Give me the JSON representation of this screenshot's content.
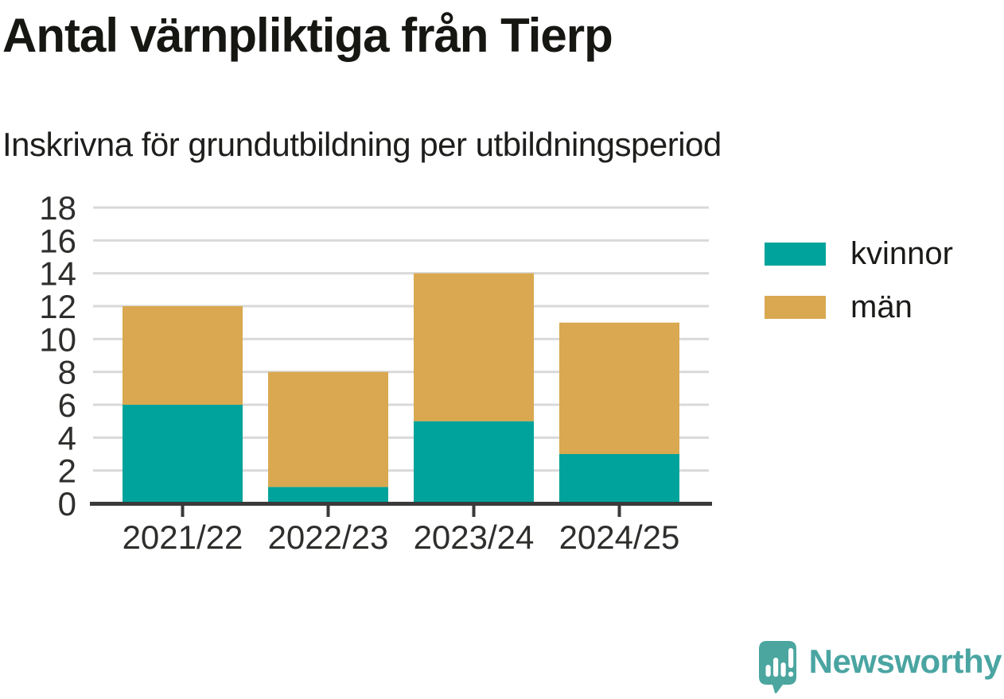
{
  "header": {
    "title": "Antal värnpliktiga från Tierp",
    "subtitle": "Inskrivna för grundutbildning per utbildningsperiod"
  },
  "chart_data": {
    "type": "bar",
    "stacked": true,
    "title": "Antal värnpliktiga från Tierp",
    "subtitle": "Inskrivna för grundutbildning per utbildningsperiod",
    "categories": [
      "2021/22",
      "2022/23",
      "2023/24",
      "2024/25"
    ],
    "series": [
      {
        "name": "kvinnor",
        "color": "#00a39b",
        "values": [
          6,
          1,
          5,
          3
        ]
      },
      {
        "name": "män",
        "color": "#d9a850",
        "values": [
          6,
          7,
          9,
          8
        ]
      }
    ],
    "totals": [
      12,
      8,
      14,
      11
    ],
    "xlabel": "",
    "ylabel": "",
    "ylim": [
      0,
      18
    ],
    "ytick_step": 2,
    "grid": true,
    "legend_position": "right"
  },
  "footer": {
    "brand": "Newsworthy"
  },
  "colors": {
    "grid": "#d9d9d9",
    "axis": "#3a3a3a",
    "tick_text": "#2e2e2c",
    "logo": "#4ba6a0",
    "logo_text": "#4aa5a2",
    "background": "#ffffff"
  }
}
